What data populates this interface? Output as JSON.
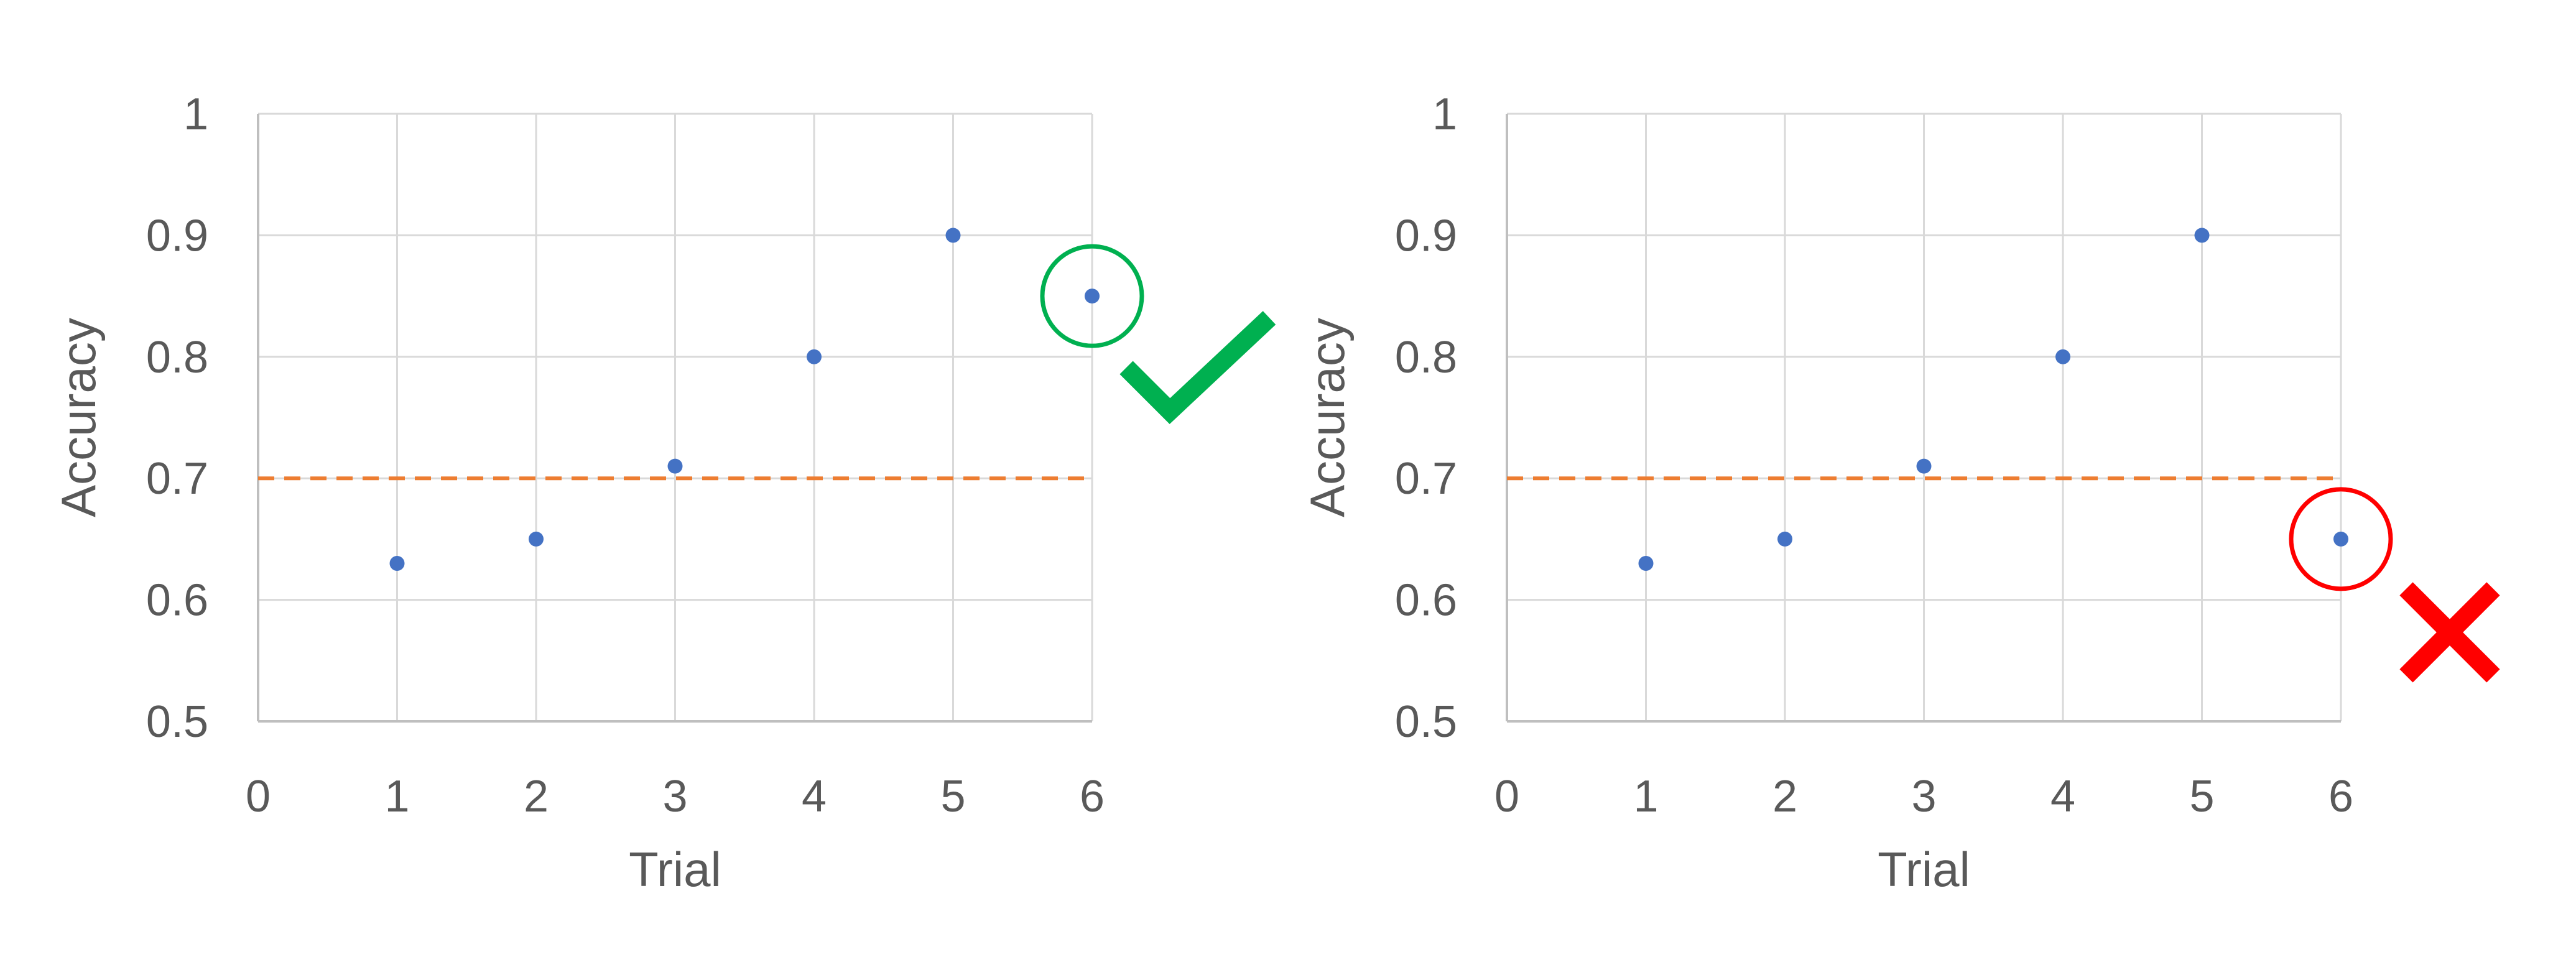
{
  "chart_data": [
    {
      "type": "scatter",
      "xlabel": "Trial",
      "ylabel": "Accuracy",
      "xlim": [
        0,
        6
      ],
      "ylim": [
        0.5,
        1
      ],
      "xticks": [
        "0",
        "1",
        "2",
        "3",
        "4",
        "5",
        "6"
      ],
      "yticks": [
        "0.5",
        "0.6",
        "0.7",
        "0.8",
        "0.9",
        "1"
      ],
      "grid": true,
      "x": [
        1,
        2,
        3,
        4,
        5,
        6
      ],
      "y": [
        0.63,
        0.65,
        0.71,
        0.8,
        0.9,
        0.85
      ],
      "threshold": 0.7,
      "highlighted_point": 6,
      "result_mark": "check",
      "colors": {
        "points": "#4472C4",
        "threshold": "#ED7D31",
        "grid": "#D9D9D9",
        "mark": "#00B050"
      }
    },
    {
      "type": "scatter",
      "xlabel": "Trial",
      "ylabel": "Accuracy",
      "xlim": [
        0,
        6
      ],
      "ylim": [
        0.5,
        1
      ],
      "xticks": [
        "0",
        "1",
        "2",
        "3",
        "4",
        "5",
        "6"
      ],
      "yticks": [
        "0.5",
        "0.6",
        "0.7",
        "0.8",
        "0.9",
        "1"
      ],
      "grid": true,
      "x": [
        1,
        2,
        3,
        4,
        5,
        6
      ],
      "y": [
        0.63,
        0.65,
        0.71,
        0.8,
        0.9,
        0.65
      ],
      "threshold": 0.7,
      "highlighted_point": 6,
      "result_mark": "cross",
      "colors": {
        "points": "#4472C4",
        "threshold": "#ED7D31",
        "grid": "#D9D9D9",
        "mark": "#FF0000"
      }
    }
  ]
}
